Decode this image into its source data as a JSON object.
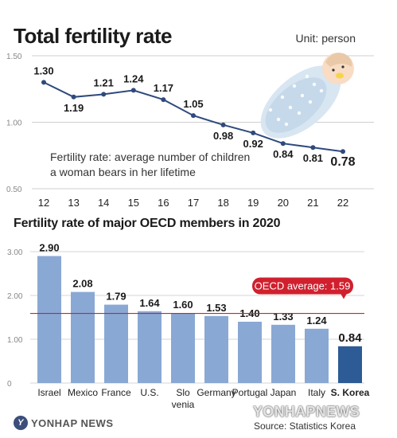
{
  "title": "Total fertility rate",
  "unit": "Unit: person",
  "note": [
    "Fertility rate: average number of children",
    "a woman bears in her lifetime"
  ],
  "subtitle": "Fertility rate of major OECD members in 2020",
  "source": "Source: Statistics Korea",
  "logo_text": "YONHAP NEWS",
  "watermark": "YONHAPNEWS",
  "colors": {
    "line": "#2e4a7d",
    "bar": "#8aa8d4",
    "bar_highlight": "#2d5b95",
    "reference": "#d0202e"
  },
  "chart_data": [
    {
      "type": "line",
      "x": [
        "12",
        "13",
        "14",
        "15",
        "16",
        "17",
        "18",
        "19",
        "20",
        "21",
        "22"
      ],
      "values": [
        1.3,
        1.19,
        1.21,
        1.24,
        1.17,
        1.05,
        0.98,
        0.92,
        0.84,
        0.81,
        0.78
      ],
      "labels": [
        "1.30",
        "1.19",
        "1.21",
        "1.24",
        "1.17",
        "1.05",
        "0.98",
        "0.92",
        "0.84",
        "0.81",
        "0.78"
      ],
      "yticks": [
        "0.50",
        "1.00",
        "1.50"
      ],
      "ylim": [
        0.5,
        1.5
      ],
      "grid": true
    },
    {
      "type": "bar",
      "categories": [
        "Israel",
        "Mexico",
        "France",
        "U.S.",
        "Slo\nvenia",
        "Germany",
        "Portugal",
        "Japan",
        "Italy",
        "S. Korea"
      ],
      "values": [
        2.9,
        2.08,
        1.79,
        1.64,
        1.6,
        1.53,
        1.4,
        1.33,
        1.24,
        0.84
      ],
      "labels": [
        "2.90",
        "2.08",
        "1.79",
        "1.64",
        "1.60",
        "1.53",
        "1.40",
        "1.33",
        "1.24",
        "0.84"
      ],
      "yticks": [
        "0",
        "1.00",
        "2.00",
        "3.00"
      ],
      "ylim": [
        0,
        3.0
      ],
      "highlight": "S. Korea",
      "reference": {
        "value": 1.59,
        "label": "OECD average: 1.59"
      },
      "grid": true
    }
  ]
}
